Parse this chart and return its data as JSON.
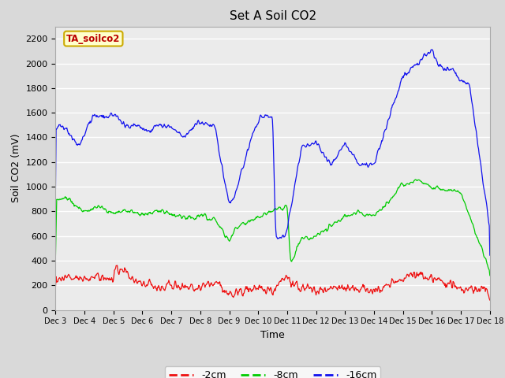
{
  "title": "Set A Soil CO2",
  "xlabel": "Time",
  "ylabel": "Soil CO2 (mV)",
  "ylim": [
    0,
    2300
  ],
  "yticks": [
    0,
    200,
    400,
    600,
    800,
    1000,
    1200,
    1400,
    1600,
    1800,
    2000,
    2200
  ],
  "legend_label_box": "TA_soilco2",
  "legend_box_color": "#ffffcc",
  "legend_box_edge": "#ccaa00",
  "series": {
    "red": {
      "label": "-2cm",
      "color": "#ee1111"
    },
    "green": {
      "label": "-8cm",
      "color": "#00cc00"
    },
    "blue": {
      "label": "-16cm",
      "color": "#1111ee"
    }
  },
  "xtick_labels": [
    "Dec 3",
    "Dec 4",
    "Dec 5",
    "Dec 6",
    "Dec 7",
    "Dec 8",
    "Dec 9",
    "Dec 10",
    "Dec 11",
    "Dec 12",
    "Dec 13",
    "Dec 14",
    "Dec 15",
    "Dec 16",
    "Dec 17",
    "Dec 18"
  ],
  "bg_color": "#d9d9d9",
  "plot_bg_color": "#ebebeb"
}
